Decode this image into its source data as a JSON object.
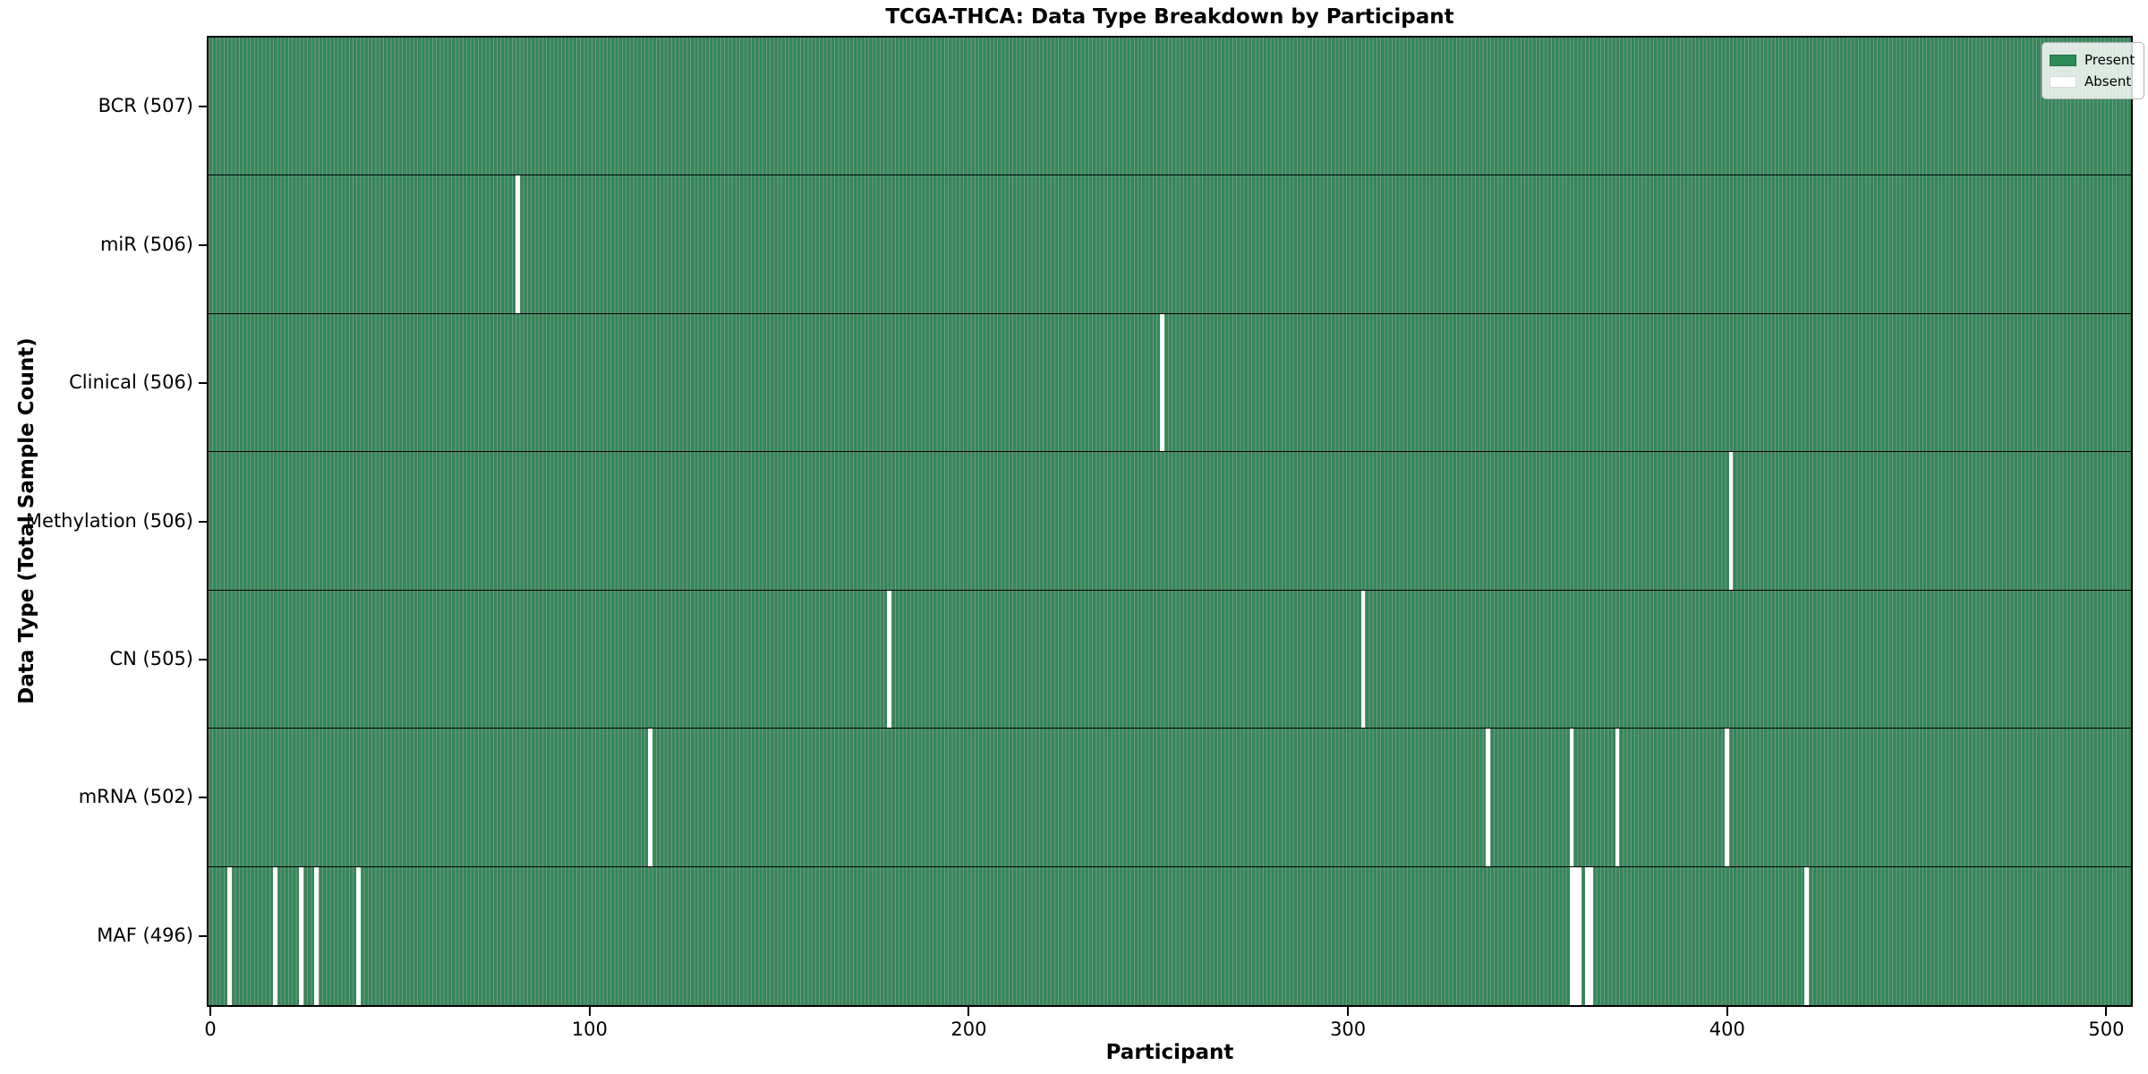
{
  "chart_data": {
    "type": "heatmap",
    "title": "TCGA-THCA: Data Type Breakdown by Participant",
    "xlabel": "Participant",
    "ylabel": "Data Type (Total Sample Count)",
    "x_ticks": [
      0,
      100,
      200,
      300,
      400,
      500
    ],
    "x_range": [
      -0.5,
      506.5
    ],
    "n_participants": 507,
    "grid": false,
    "legend_position": "upper right",
    "colors": {
      "present": "#2e8b57",
      "absent": "#ffffff",
      "bar_edge": "rgba(0,0,0,0.45)",
      "row_separator": "#000000",
      "plot_border": "#000000"
    },
    "legend": [
      {
        "label": "Present",
        "color": "#2e8b57"
      },
      {
        "label": "Absent",
        "color": "#ffffff"
      }
    ],
    "rows": [
      {
        "label": "BCR (507)",
        "data_type": "BCR",
        "total_samples": 507,
        "absent_participants": []
      },
      {
        "label": "miR (506)",
        "data_type": "miR",
        "total_samples": 506,
        "absent_participants": [
          81
        ]
      },
      {
        "label": "Clinical (506)",
        "data_type": "Clinical",
        "total_samples": 506,
        "absent_participants": [
          251
        ]
      },
      {
        "label": "Methylation (506)",
        "data_type": "Methylation",
        "total_samples": 506,
        "absent_participants": [
          401
        ]
      },
      {
        "label": "CN (505)",
        "data_type": "CN",
        "total_samples": 505,
        "absent_participants": [
          179,
          304
        ]
      },
      {
        "label": "mRNA (502)",
        "data_type": "mRNA",
        "total_samples": 502,
        "absent_participants": [
          116,
          337,
          359,
          371,
          400
        ]
      },
      {
        "label": "MAF (496)",
        "data_type": "MAF",
        "total_samples": 496,
        "absent_participants": [
          5,
          17,
          24,
          28,
          39,
          359,
          360,
          361,
          363,
          364,
          421
        ]
      }
    ]
  }
}
